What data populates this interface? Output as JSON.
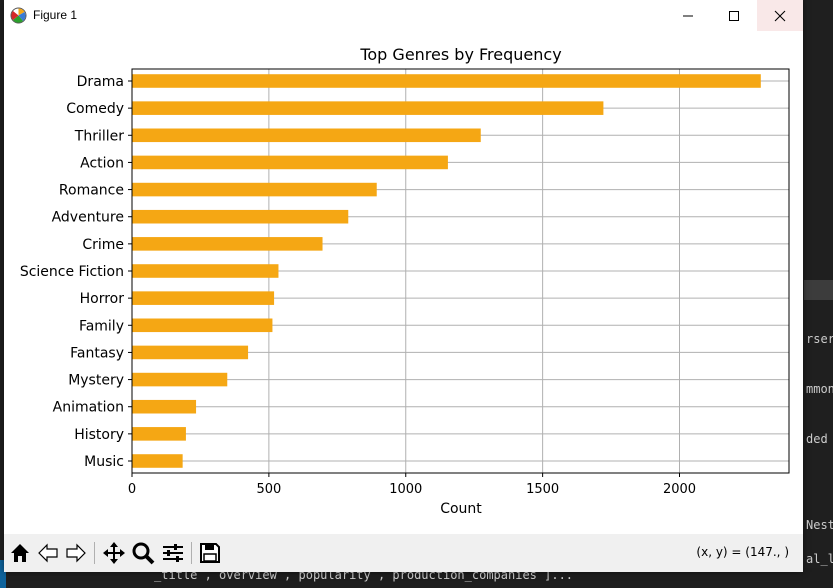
{
  "window": {
    "title": "Figure 1",
    "coords_readout": "(x, y) = (147., )"
  },
  "toolbar": {
    "buttons": [
      "home-icon",
      "back-icon",
      "forward-icon",
      "pan-icon",
      "zoom-icon",
      "configure-subplots-icon",
      "save-icon"
    ]
  },
  "background_editor": {
    "fragments": [
      "rser",
      "mmon",
      "ded",
      "Nest",
      "al_l",
      "_title , overview , popularity , production_companies ]..."
    ]
  },
  "colors": {
    "bar": "#f5a714",
    "grid": "#b0b0b0",
    "close_hover": "#f9e8e8"
  },
  "chart_data": {
    "type": "bar",
    "orientation": "horizontal",
    "title": "Top Genres by Frequency",
    "xlabel": "Count",
    "ylabel": "",
    "categories": [
      "Drama",
      "Comedy",
      "Thriller",
      "Action",
      "Romance",
      "Adventure",
      "Crime",
      "Science Fiction",
      "Horror",
      "Family",
      "Fantasy",
      "Mystery",
      "Animation",
      "History",
      "Music"
    ],
    "values": [
      2297,
      1722,
      1274,
      1154,
      894,
      790,
      696,
      535,
      519,
      513,
      424,
      348,
      234,
      197,
      185
    ],
    "xlim": [
      0,
      2400
    ],
    "xticks": [
      0,
      500,
      1000,
      1500,
      2000
    ],
    "xtick_labels": [
      "0",
      "500",
      "1000",
      "1500",
      "2000"
    ],
    "grid": true,
    "legend": "none"
  }
}
